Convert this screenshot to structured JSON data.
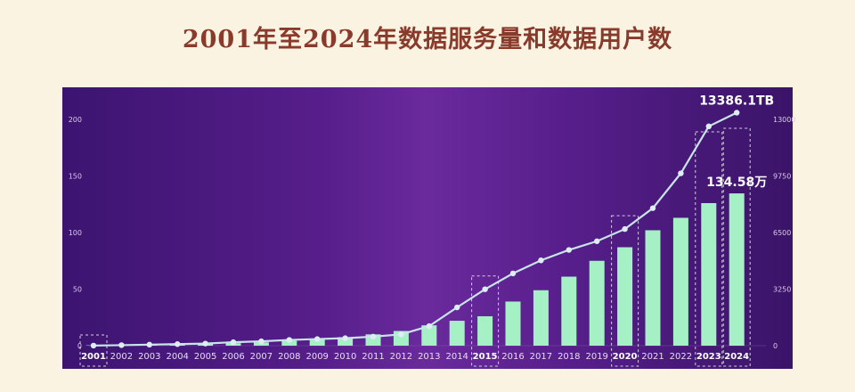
{
  "title": "2001年至2024年数据服务量和数据用户数",
  "chart_data": {
    "type": "bar",
    "categories": [
      "2001",
      "2002",
      "2003",
      "2004",
      "2005",
      "2006",
      "2007",
      "2008",
      "2009",
      "2010",
      "2011",
      "2012",
      "2013",
      "2014",
      "2015",
      "2016",
      "2017",
      "2018",
      "2019",
      "2020",
      "2021",
      "2022",
      "2023",
      "2024"
    ],
    "series": [
      {
        "axis": "left",
        "type": "bar",
        "color": "#a6f0c6",
        "values": [
          0.3,
          0.6,
          0.9,
          1.2,
          1.5,
          2.2,
          3.0,
          4.5,
          6.0,
          7.5,
          10.0,
          13.0,
          18.0,
          22.0,
          26.0,
          39.0,
          49.0,
          61.0,
          75.0,
          87.0,
          102.0,
          113.0,
          126.0,
          134.58
        ]
      },
      {
        "axis": "right",
        "type": "line",
        "color": "#c8e4ea",
        "values": [
          5,
          30,
          60,
          90,
          120,
          200,
          250,
          330,
          380,
          430,
          520,
          650,
          1120,
          2200,
          3240,
          4150,
          4900,
          5500,
          6000,
          6700,
          7900,
          9900,
          12600,
          13386.1
        ]
      }
    ],
    "left_axis": {
      "ticks": [
        "0",
        "50",
        "100",
        "150",
        "200"
      ],
      "ylim": [
        0,
        200
      ]
    },
    "right_axis": {
      "ticks": [
        "0",
        "3250",
        "6500",
        "9750",
        "13000"
      ],
      "ylim": [
        0,
        13000
      ]
    },
    "highlighted_years": [
      "2001",
      "2015",
      "2020",
      "2023",
      "2024"
    ],
    "annotations": {
      "line_max": "13386.1TB",
      "bar_max": "134.58万"
    }
  }
}
